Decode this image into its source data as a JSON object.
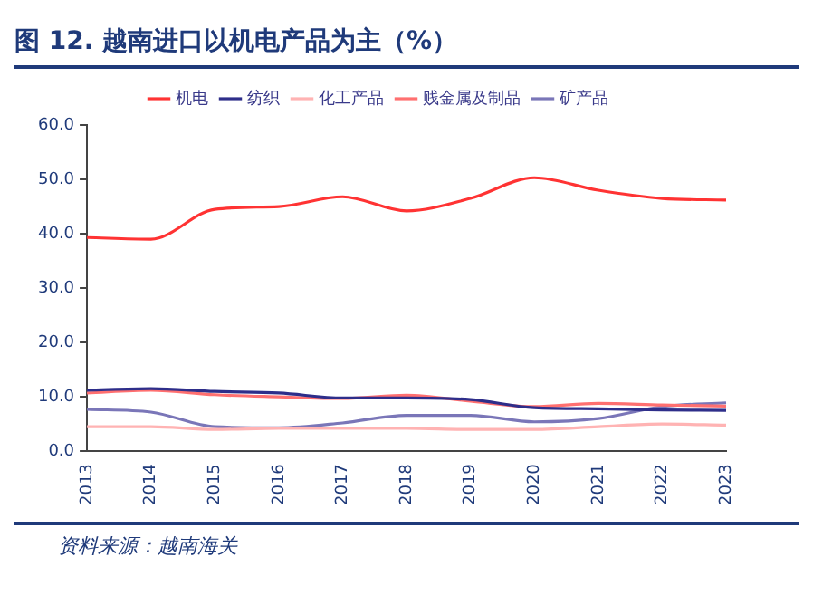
{
  "chart_data": {
    "type": "line",
    "title": "图 12. 越南进口以机电产品为主（%）",
    "categories": [
      "2013",
      "2014",
      "2015",
      "2016",
      "2017",
      "2018",
      "2019",
      "2020",
      "2021",
      "2022",
      "2023"
    ],
    "series": [
      {
        "name": "机电",
        "color": "#ff3333",
        "values": [
          39.3,
          39.0,
          44.5,
          45.0,
          46.8,
          44.2,
          46.5,
          50.3,
          48.0,
          46.5,
          46.2
        ]
      },
      {
        "name": "纺织",
        "color": "#2e2e8a",
        "values": [
          11.2,
          11.5,
          11.0,
          10.7,
          9.8,
          9.8,
          9.5,
          8.0,
          7.8,
          7.6,
          7.5
        ]
      },
      {
        "name": "化工产品",
        "color": "#ffb3b3",
        "values": [
          4.5,
          4.5,
          4.0,
          4.2,
          4.2,
          4.2,
          4.0,
          4.0,
          4.5,
          5.0,
          4.8
        ]
      },
      {
        "name": "贱金属及制品",
        "color": "#ff7070",
        "values": [
          10.7,
          11.2,
          10.4,
          10.0,
          9.7,
          10.3,
          9.2,
          8.2,
          8.8,
          8.5,
          8.3
        ]
      },
      {
        "name": "矿产品",
        "color": "#7a76b8",
        "values": [
          7.7,
          7.2,
          4.5,
          4.3,
          5.2,
          6.6,
          6.6,
          5.4,
          6.0,
          8.2,
          8.9
        ]
      }
    ],
    "ylim": [
      0,
      60
    ],
    "yticks": [
      {
        "value": 0,
        "label": "0.0"
      },
      {
        "value": 10,
        "label": "10.0"
      },
      {
        "value": 20,
        "label": "20.0"
      },
      {
        "value": 30,
        "label": "30.0"
      },
      {
        "value": 40,
        "label": "40.0"
      },
      {
        "value": 50,
        "label": "50.0"
      },
      {
        "value": 60,
        "label": "60.0"
      }
    ],
    "grid": false,
    "legend": "top",
    "marker": "none",
    "line_style": "solid",
    "annotations": [
      "资料来源：越南海关"
    ]
  }
}
